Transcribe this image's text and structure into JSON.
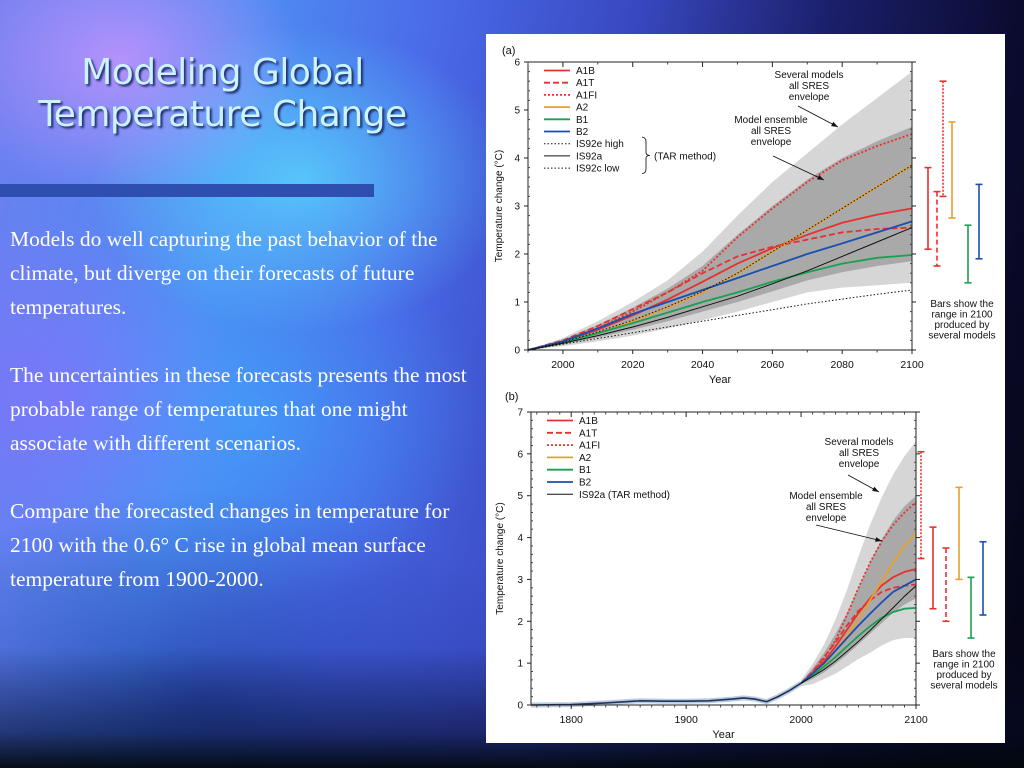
{
  "slide": {
    "title_line1": "Modeling Global",
    "title_line2": "Temperature Change",
    "paragraphs": [
      "Models do well capturing the past behavior of the climate, but diverge on their forecasts of future temperatures.",
      "The uncertainties in these forecasts presents the most probable range of temperatures that one might associate with different scenarios.",
      "Compare the forecasted changes in temperature for 2100 with the 0.6° C rise in global mean surface temperature from 1900-2000."
    ]
  },
  "colors": {
    "A1B": "#e8302e",
    "A1T": "#e8302e",
    "A1FI": "#e8302e",
    "A2": "#e8a02a",
    "B1": "#1aa050",
    "B2": "#1a4fb0",
    "IS92": "#111111",
    "envelope_outer": "#d6d6d6",
    "envelope_inner": "#a9a9a9"
  },
  "chart_data": [
    {
      "panel": "(a)",
      "type": "line",
      "xlabel": "Year",
      "ylabel": "Temperature change (°C)",
      "xlim": [
        1990,
        2100
      ],
      "ylim": [
        0,
        6
      ],
      "xticks": [
        2000,
        2020,
        2040,
        2060,
        2080,
        2100
      ],
      "yticks": [
        0,
        1,
        2,
        3,
        4,
        5,
        6
      ],
      "annotations": {
        "outer_envelope": "Several models all SRES envelope",
        "inner_envelope": "Model ensemble all SRES envelope",
        "bars_note": "Bars show the range in 2100 produced by several models",
        "tar_method": "(TAR method)"
      },
      "legend": [
        "A1B",
        "A1T",
        "A1FI",
        "A2",
        "B1",
        "B2",
        "IS92e high",
        "IS92a",
        "IS92c low"
      ],
      "x": [
        1990,
        2000,
        2010,
        2020,
        2030,
        2040,
        2050,
        2060,
        2070,
        2080,
        2090,
        2100
      ],
      "series": [
        {
          "name": "A1B",
          "style": "solid",
          "values": [
            0,
            0.18,
            0.42,
            0.72,
            1.05,
            1.42,
            1.8,
            2.12,
            2.4,
            2.65,
            2.82,
            2.95
          ]
        },
        {
          "name": "A1T",
          "style": "dashed",
          "values": [
            0,
            0.2,
            0.5,
            0.85,
            1.2,
            1.6,
            1.95,
            2.15,
            2.3,
            2.45,
            2.52,
            2.55
          ]
        },
        {
          "name": "A1FI",
          "style": "dotted",
          "values": [
            0,
            0.18,
            0.45,
            0.8,
            1.2,
            1.65,
            2.35,
            2.95,
            3.5,
            3.95,
            4.25,
            4.5
          ]
        },
        {
          "name": "A2",
          "style": "solid",
          "values": [
            0,
            0.16,
            0.35,
            0.6,
            0.88,
            1.2,
            1.6,
            2.05,
            2.5,
            2.95,
            3.4,
            3.85
          ]
        },
        {
          "name": "B1",
          "style": "solid",
          "values": [
            0,
            0.16,
            0.35,
            0.56,
            0.78,
            1.0,
            1.2,
            1.42,
            1.62,
            1.8,
            1.92,
            1.98
          ]
        },
        {
          "name": "B2",
          "style": "solid",
          "values": [
            0,
            0.18,
            0.45,
            0.75,
            1.0,
            1.25,
            1.5,
            1.75,
            2.0,
            2.22,
            2.45,
            2.68
          ]
        },
        {
          "name": "IS92e high",
          "style": "dotted",
          "values": [
            0,
            0.16,
            0.38,
            0.62,
            0.9,
            1.22,
            1.6,
            2.05,
            2.5,
            2.95,
            3.4,
            3.85
          ]
        },
        {
          "name": "IS92a",
          "style": "solid-thin",
          "values": [
            0,
            0.14,
            0.3,
            0.48,
            0.68,
            0.9,
            1.12,
            1.38,
            1.65,
            1.95,
            2.25,
            2.55
          ]
        },
        {
          "name": "IS92c low",
          "style": "dotted",
          "values": [
            0,
            0.12,
            0.24,
            0.36,
            0.48,
            0.6,
            0.72,
            0.84,
            0.96,
            1.06,
            1.16,
            1.25
          ]
        }
      ],
      "envelopes": {
        "outer_upper": [
          0,
          0.25,
          0.6,
          1.0,
          1.45,
          2.05,
          2.8,
          3.5,
          4.1,
          4.7,
          5.25,
          5.8
        ],
        "outer_lower": [
          0,
          0.08,
          0.18,
          0.3,
          0.45,
          0.62,
          0.8,
          1.0,
          1.2,
          1.3,
          1.35,
          1.4
        ],
        "inner_upper": [
          0,
          0.22,
          0.52,
          0.88,
          1.28,
          1.75,
          2.4,
          3.0,
          3.55,
          4.0,
          4.35,
          4.65
        ],
        "inner_lower": [
          0,
          0.12,
          0.26,
          0.42,
          0.6,
          0.8,
          1.0,
          1.22,
          1.45,
          1.62,
          1.75,
          1.85
        ]
      },
      "range_bars_2100": [
        {
          "name": "A1B",
          "style": "solid",
          "low": 2.1,
          "high": 3.8
        },
        {
          "name": "A1T",
          "style": "dashed",
          "low": 1.75,
          "high": 3.3
        },
        {
          "name": "A1FI",
          "style": "dotted",
          "low": 3.2,
          "high": 5.6
        },
        {
          "name": "A2",
          "style": "solid",
          "low": 2.75,
          "high": 4.75
        },
        {
          "name": "B1",
          "style": "solid",
          "low": 1.4,
          "high": 2.6
        },
        {
          "name": "B2",
          "style": "solid",
          "low": 1.9,
          "high": 3.45
        }
      ]
    },
    {
      "panel": "(b)",
      "type": "line",
      "xlabel": "Year",
      "ylabel": "Temperature change (°C)",
      "xlim": [
        1765,
        2100
      ],
      "ylim": [
        0,
        7
      ],
      "xticks": [
        1800,
        1900,
        2000,
        2100
      ],
      "yticks": [
        0,
        1,
        2,
        3,
        4,
        5,
        6,
        7
      ],
      "annotations": {
        "outer_envelope": "Several models all SRES envelope",
        "inner_envelope": "Model ensemble all SRES envelope",
        "bars_note": "Bars show the range in 2100 produced by several models"
      },
      "legend": [
        "A1B",
        "A1T",
        "A1FI",
        "A2",
        "B1",
        "B2",
        "IS92a (TAR method)"
      ],
      "historical": {
        "x": [
          1765,
          1800,
          1830,
          1860,
          1880,
          1900,
          1920,
          1940,
          1950,
          1960,
          1970,
          1980,
          1990,
          2000
        ],
        "values": [
          0,
          0.01,
          0.05,
          0.1,
          0.09,
          0.09,
          0.1,
          0.14,
          0.17,
          0.14,
          0.08,
          0.2,
          0.35,
          0.52
        ]
      },
      "x": [
        2000,
        2010,
        2020,
        2030,
        2040,
        2050,
        2060,
        2070,
        2080,
        2090,
        2100
      ],
      "series": [
        {
          "name": "A1B",
          "style": "solid",
          "values": [
            0.52,
            0.75,
            1.05,
            1.4,
            1.8,
            2.2,
            2.55,
            2.85,
            3.05,
            3.18,
            3.25
          ]
        },
        {
          "name": "A1T",
          "style": "dashed",
          "values": [
            0.52,
            0.8,
            1.15,
            1.5,
            1.9,
            2.25,
            2.5,
            2.7,
            2.8,
            2.85,
            2.88
          ]
        },
        {
          "name": "A1FI",
          "style": "dotted",
          "values": [
            0.52,
            0.78,
            1.12,
            1.55,
            2.15,
            2.8,
            3.4,
            3.9,
            4.3,
            4.6,
            4.85
          ]
        },
        {
          "name": "A2",
          "style": "solid",
          "values": [
            0.52,
            0.72,
            0.98,
            1.3,
            1.65,
            2.05,
            2.5,
            2.95,
            3.4,
            3.8,
            4.1
          ]
        },
        {
          "name": "B1",
          "style": "solid",
          "values": [
            0.52,
            0.7,
            0.92,
            1.15,
            1.4,
            1.65,
            1.88,
            2.08,
            2.22,
            2.3,
            2.32
          ]
        },
        {
          "name": "B2",
          "style": "solid",
          "values": [
            0.52,
            0.75,
            1.0,
            1.3,
            1.6,
            1.9,
            2.18,
            2.45,
            2.7,
            2.85,
            3.0
          ]
        },
        {
          "name": "IS92a (TAR method)",
          "style": "solid-thin",
          "values": [
            0.52,
            0.68,
            0.85,
            1.05,
            1.28,
            1.52,
            1.78,
            2.05,
            2.32,
            2.6,
            2.85
          ]
        }
      ],
      "envelopes": {
        "outer_upper": [
          0.6,
          0.98,
          1.45,
          2.05,
          2.75,
          3.55,
          4.3,
          4.95,
          5.5,
          5.95,
          6.3
        ],
        "outer_lower": [
          0.45,
          0.5,
          0.62,
          0.75,
          0.92,
          1.1,
          1.25,
          1.42,
          1.55,
          1.6,
          1.6
        ],
        "inner_upper": [
          0.55,
          0.88,
          1.25,
          1.7,
          2.2,
          2.8,
          3.4,
          3.95,
          4.4,
          4.75,
          5.0
        ],
        "inner_lower": [
          0.5,
          0.62,
          0.78,
          0.98,
          1.2,
          1.45,
          1.7,
          1.95,
          2.2,
          2.4,
          2.55
        ]
      },
      "range_bars_2100": [
        {
          "name": "A1FI",
          "style": "dotted",
          "low": 3.5,
          "high": 6.05
        },
        {
          "name": "A1B",
          "style": "solid",
          "low": 2.3,
          "high": 4.25
        },
        {
          "name": "A1T",
          "style": "dashed",
          "low": 2.0,
          "high": 3.75
        },
        {
          "name": "A2",
          "style": "solid",
          "low": 3.0,
          "high": 5.2
        },
        {
          "name": "B1",
          "style": "solid",
          "low": 1.6,
          "high": 3.05
        },
        {
          "name": "B2",
          "style": "solid",
          "low": 2.15,
          "high": 3.9
        }
      ]
    }
  ]
}
